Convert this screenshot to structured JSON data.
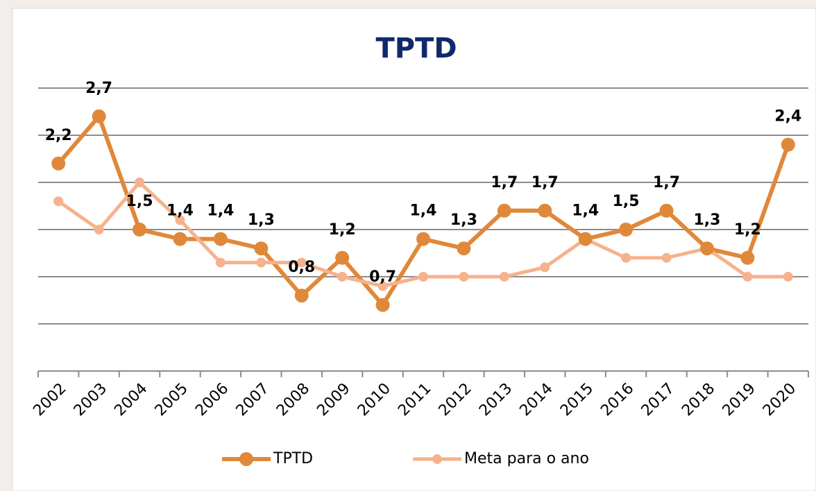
{
  "chart_data": {
    "type": "line",
    "title": "TPTD",
    "categories": [
      "2002",
      "2003",
      "2004",
      "2005",
      "2006",
      "2007",
      "2008",
      "2009",
      "2010",
      "2011",
      "2012",
      "2013",
      "2014",
      "2015",
      "2016",
      "2017",
      "2018",
      "2019",
      "2020"
    ],
    "series": [
      {
        "name": "TPTD",
        "color": "#e0883a",
        "values": [
          2.2,
          2.7,
          1.5,
          1.4,
          1.4,
          1.3,
          0.8,
          1.2,
          0.7,
          1.4,
          1.3,
          1.7,
          1.7,
          1.4,
          1.5,
          1.7,
          1.3,
          1.2,
          2.4
        ],
        "value_labels": [
          "2,2",
          "2,7",
          "1,5",
          "1,4",
          "1,4",
          "1,3",
          "0,8",
          "1,2",
          "0,7",
          "1,4",
          "1,3",
          "1,7",
          "1,7",
          "1,4",
          "1,5",
          "1,7",
          "1,3",
          "1,2",
          "2,4"
        ]
      },
      {
        "name": "Meta para o ano",
        "color": "#f6b28c",
        "values": [
          1.8,
          1.5,
          2.0,
          1.6,
          1.15,
          1.15,
          1.15,
          1.0,
          0.9,
          1.0,
          1.0,
          1.0,
          1.1,
          1.4,
          1.2,
          1.2,
          1.3,
          1.0,
          1.0
        ]
      }
    ],
    "ylim": [
      0,
      3
    ],
    "yticks": [
      0.5,
      1,
      1.5,
      2,
      2.5,
      3
    ],
    "grid": true,
    "legend": "bottom"
  }
}
